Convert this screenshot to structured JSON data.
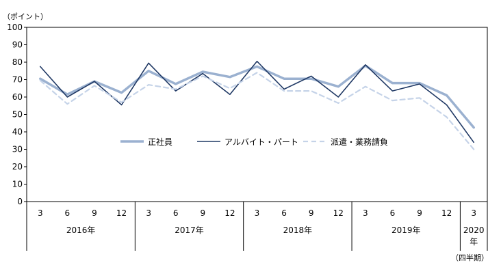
{
  "chart_data": {
    "type": "line",
    "y_unit": "（ポイント）",
    "x_suffix": "（四半期）",
    "ylim": [
      0,
      100
    ],
    "yticks": [
      0,
      10,
      20,
      30,
      40,
      50,
      60,
      70,
      80,
      90,
      100
    ],
    "grid": false,
    "legend_placement": "center",
    "categories": [
      "3",
      "6",
      "9",
      "12",
      "3",
      "6",
      "9",
      "12",
      "3",
      "6",
      "9",
      "12",
      "3",
      "6",
      "9",
      "12",
      "3"
    ],
    "year_groups": [
      {
        "label": "2016年",
        "count": 4
      },
      {
        "label": "2017年",
        "count": 4
      },
      {
        "label": "2018年",
        "count": 4
      },
      {
        "label": "2019年",
        "count": 4
      },
      {
        "label_line1": "2020",
        "label_line2": "年",
        "count": 1
      }
    ],
    "series": [
      {
        "name": "正社員",
        "color": "#9bb1d0",
        "style": "thick",
        "values": [
          70.5,
          61.5,
          69,
          62.5,
          75,
          67.5,
          74.5,
          71.5,
          77.5,
          70.5,
          70.5,
          66,
          78,
          68,
          68,
          61,
          42.5
        ]
      },
      {
        "name": "アルバイト・パート",
        "color": "#1f3864",
        "style": "solid",
        "values": [
          77.5,
          60,
          69,
          55.5,
          79.5,
          63.5,
          73.5,
          61.5,
          80.5,
          64.5,
          72,
          60,
          78.5,
          63.5,
          67.5,
          55.5,
          34
        ]
      },
      {
        "name": "派遣・業務請負",
        "color": "#c5d3e8",
        "style": "dashed",
        "values": [
          69.5,
          56,
          66.5,
          57,
          67,
          64.5,
          72,
          65,
          74,
          63.5,
          63.5,
          56.5,
          66,
          58,
          59.5,
          48.5,
          30
        ]
      }
    ]
  }
}
